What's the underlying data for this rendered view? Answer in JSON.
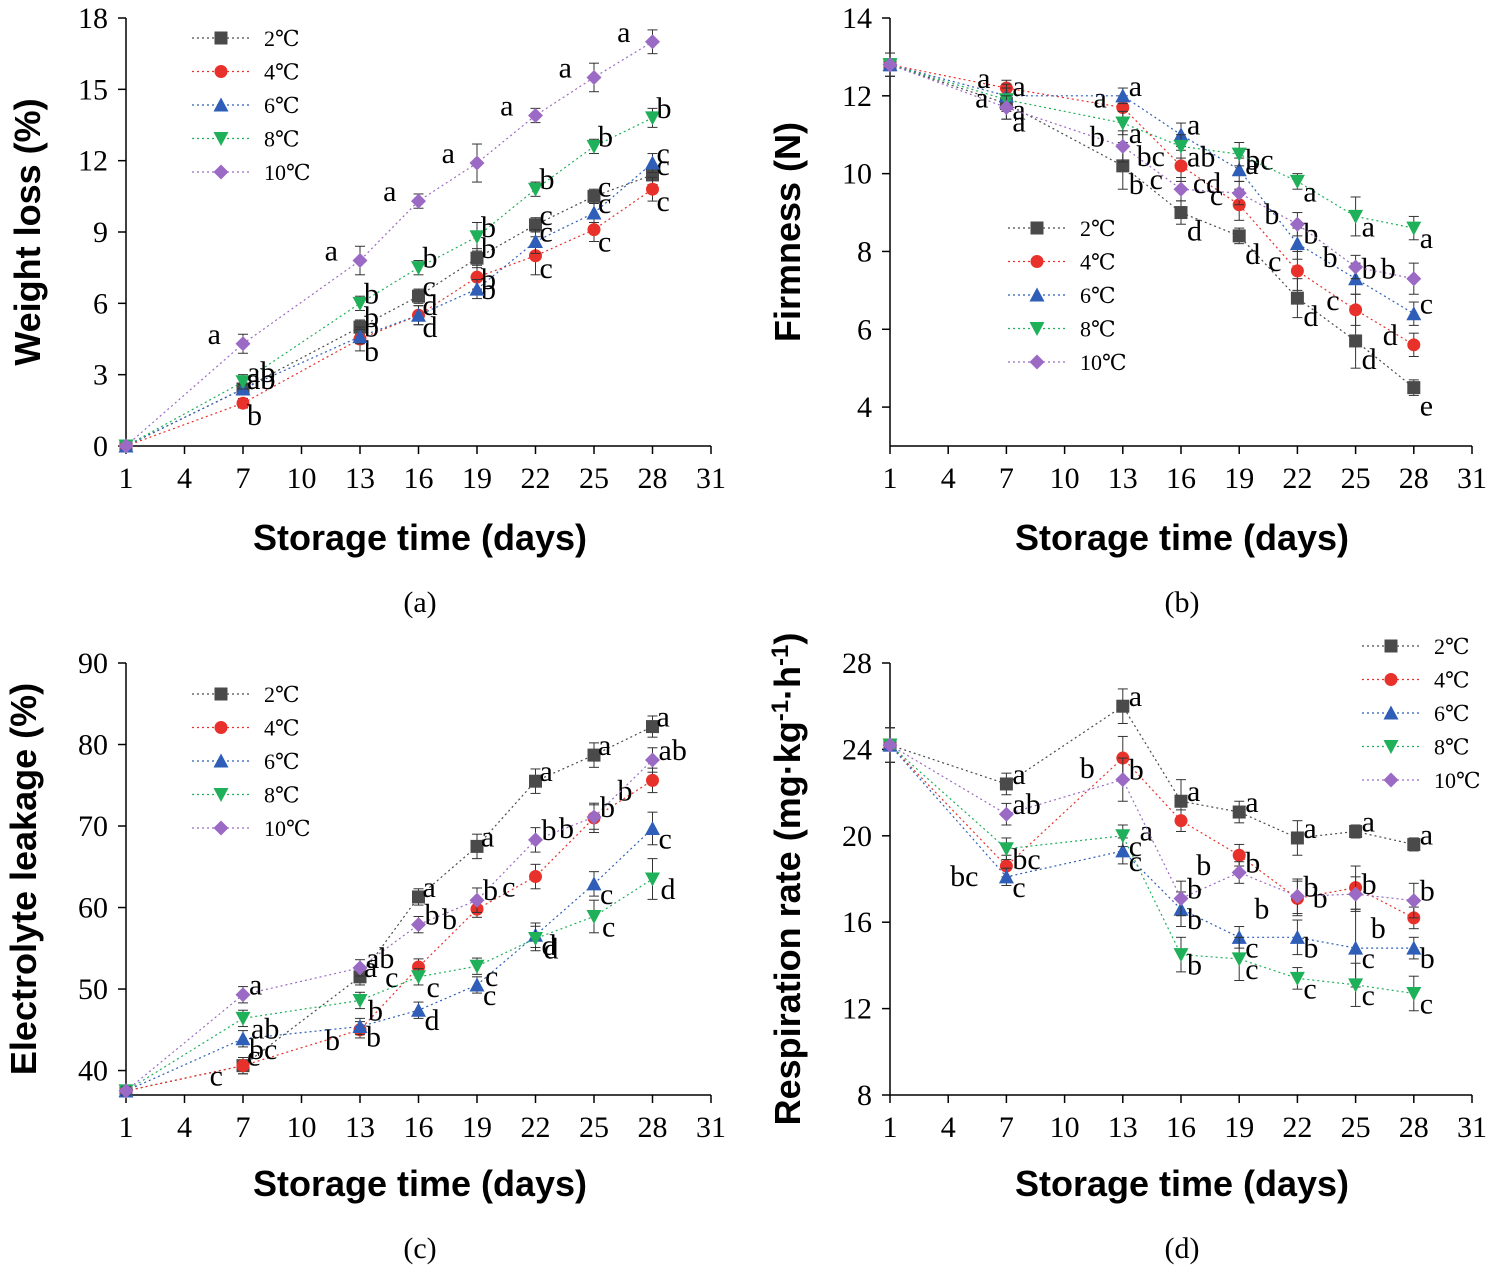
{
  "series_colors": [
    "#4a4a4a",
    "#e8312a",
    "#2e5eb8",
    "#1fb05a",
    "#9b6ac4"
  ],
  "series_markers": [
    "square",
    "circle",
    "triangle-up",
    "triangle-down",
    "diamond"
  ],
  "chart_data": [
    {
      "id": "a",
      "type": "line",
      "panel_label": "(a)",
      "xlabel": "Storage time (days)",
      "ylabel": "Weight loss (%)",
      "xlim": [
        1,
        31
      ],
      "xticks": [
        1,
        4,
        7,
        10,
        13,
        16,
        19,
        22,
        25,
        28,
        31
      ],
      "ylim": [
        0,
        18
      ],
      "yticks": [
        0,
        3,
        6,
        9,
        12,
        15,
        18
      ],
      "legend_position": "top-left",
      "x": [
        1,
        7,
        13,
        16,
        19,
        22,
        25,
        28
      ],
      "series": [
        {
          "name": "2℃",
          "values": [
            0,
            2.4,
            5.0,
            6.3,
            7.9,
            9.3,
            10.5,
            11.4
          ],
          "err": [
            0,
            0.2,
            0.3,
            0.3,
            0.4,
            0.3,
            0.3,
            0.4
          ],
          "letters": [
            "",
            "ab",
            "b",
            "c",
            "b",
            "c",
            "c",
            "c"
          ]
        },
        {
          "name": "4℃",
          "values": [
            0,
            1.8,
            4.5,
            5.5,
            7.1,
            8.0,
            9.1,
            10.8
          ],
          "err": [
            0,
            0.2,
            0.5,
            0.4,
            0.5,
            0.8,
            0.5,
            0.5
          ],
          "letters": [
            "",
            "b",
            "b",
            "d",
            "b",
            "c",
            "c",
            "c"
          ]
        },
        {
          "name": "6℃",
          "values": [
            0,
            2.4,
            4.6,
            5.5,
            6.6,
            8.6,
            9.8,
            11.9
          ],
          "err": [
            0,
            0.2,
            0.3,
            0.4,
            0.4,
            0.5,
            0.4,
            0.4
          ],
          "letters": [
            "",
            "ab",
            "b",
            "d",
            "b",
            "c",
            "c",
            "c"
          ]
        },
        {
          "name": "8℃",
          "values": [
            0,
            2.7,
            6.0,
            7.5,
            8.8,
            10.8,
            12.6,
            13.8
          ],
          "err": [
            0,
            0.3,
            0.3,
            0.3,
            0.6,
            0.3,
            0.3,
            0.4
          ],
          "letters": [
            "",
            "ab",
            "b",
            "b",
            "b",
            "b",
            "b",
            "b"
          ]
        },
        {
          "name": "10℃",
          "values": [
            0,
            4.3,
            7.8,
            10.3,
            11.9,
            13.9,
            15.5,
            17.0
          ],
          "err": [
            0,
            0.4,
            0.6,
            0.3,
            0.8,
            0.3,
            0.6,
            0.5
          ],
          "letters": [
            "",
            "a",
            "a",
            "a",
            "a",
            "a",
            "a",
            "a"
          ]
        }
      ]
    },
    {
      "id": "b",
      "type": "line",
      "panel_label": "(b)",
      "xlabel": "Storage time (days)",
      "ylabel": "Firmness (N)",
      "xlim": [
        1,
        31
      ],
      "xticks": [
        1,
        4,
        7,
        10,
        13,
        16,
        19,
        22,
        25,
        28,
        31
      ],
      "ylim": [
        3,
        14
      ],
      "yticks": [
        4,
        6,
        8,
        10,
        12,
        14
      ],
      "legend_position": "middle-left",
      "x": [
        1,
        7,
        13,
        16,
        19,
        22,
        25,
        28
      ],
      "series": [
        {
          "name": "2℃",
          "values": [
            12.8,
            11.8,
            10.2,
            9.0,
            8.4,
            6.8,
            5.7,
            4.5
          ],
          "err": [
            0.3,
            0.4,
            0.6,
            0.3,
            0.2,
            0.5,
            0.7,
            0.2
          ],
          "letters": [
            "",
            "a",
            "b",
            "d",
            "d",
            "d",
            "d",
            "e"
          ]
        },
        {
          "name": "4℃",
          "values": [
            12.8,
            12.2,
            11.7,
            10.2,
            9.2,
            7.5,
            6.5,
            5.6
          ],
          "err": [
            0.3,
            0.2,
            0.3,
            0.4,
            0.4,
            0.5,
            0.4,
            0.3
          ],
          "letters": [
            "",
            "a",
            "a",
            "bc",
            "c",
            "c",
            "c",
            "d"
          ]
        },
        {
          "name": "6℃",
          "values": [
            12.8,
            12.0,
            12.0,
            11.0,
            10.1,
            8.2,
            7.3,
            6.4
          ],
          "err": [
            0.3,
            0.3,
            0.2,
            0.3,
            0.3,
            0.4,
            0.4,
            0.3
          ],
          "letters": [
            "",
            "a",
            "a",
            "a",
            "bc",
            "b",
            "b",
            "c"
          ]
        },
        {
          "name": "8℃",
          "values": [
            12.8,
            11.9,
            11.3,
            10.7,
            10.5,
            9.8,
            8.9,
            8.6
          ],
          "err": [
            0.3,
            0.3,
            0.3,
            0.3,
            0.3,
            0.2,
            0.5,
            0.3
          ],
          "letters": [
            "",
            "a",
            "a",
            "ab",
            "a",
            "a",
            "a",
            "a"
          ]
        },
        {
          "name": "10℃",
          "values": [
            12.8,
            11.7,
            10.7,
            9.6,
            9.5,
            8.7,
            7.6,
            7.3
          ],
          "err": [
            0.3,
            0.3,
            0.4,
            0.3,
            0.3,
            0.3,
            0.3,
            0.4
          ],
          "letters": [
            "",
            "a",
            "b",
            "c",
            "cd",
            "b",
            "b",
            "b"
          ]
        }
      ]
    },
    {
      "id": "c",
      "type": "line",
      "panel_label": "(c)",
      "xlabel": "Storage time (days)",
      "ylabel": "Electrolyte leakage (%)",
      "xlim": [
        1,
        31
      ],
      "xticks": [
        1,
        4,
        7,
        10,
        13,
        16,
        19,
        22,
        25,
        28,
        31
      ],
      "ylim": [
        37,
        90
      ],
      "yticks": [
        40,
        50,
        60,
        70,
        80,
        90
      ],
      "legend_position": "top-left",
      "x": [
        1,
        7,
        13,
        16,
        19,
        22,
        25,
        28
      ],
      "series": [
        {
          "name": "2℃",
          "values": [
            37.5,
            40.6,
            51.5,
            61.3,
            67.5,
            75.5,
            78.7,
            82.2
          ],
          "err": [
            0.5,
            1.0,
            1.0,
            1.0,
            1.5,
            1.5,
            1.5,
            1.3
          ],
          "letters": [
            "",
            "c",
            "a",
            "a",
            "a",
            "a",
            "a",
            "a"
          ]
        },
        {
          "name": "4℃",
          "values": [
            37.5,
            40.6,
            45.0,
            52.7,
            59.8,
            63.8,
            71.0,
            75.6
          ],
          "err": [
            0.5,
            1.0,
            1.0,
            1.0,
            1.0,
            1.5,
            1.8,
            1.5
          ],
          "letters": [
            "",
            "c",
            "b",
            "c",
            "b",
            "c",
            "b",
            "b"
          ]
        },
        {
          "name": "6℃",
          "values": [
            37.5,
            43.9,
            45.4,
            47.4,
            50.5,
            56.6,
            62.9,
            69.7
          ],
          "err": [
            0.5,
            1.0,
            1.0,
            1.0,
            1.0,
            1.5,
            1.5,
            2.0
          ],
          "letters": [
            "",
            "bc",
            "b",
            "d",
            "c",
            "d",
            "c",
            "c"
          ]
        },
        {
          "name": "8℃",
          "values": [
            37.5,
            46.4,
            48.6,
            51.5,
            52.8,
            56.2,
            58.9,
            63.5
          ],
          "err": [
            0.5,
            1.0,
            1.0,
            1.0,
            1.0,
            1.5,
            2.0,
            2.5
          ],
          "letters": [
            "",
            "ab",
            "b",
            "c",
            "c",
            "d",
            "c",
            "d"
          ]
        },
        {
          "name": "10℃",
          "values": [
            37.5,
            49.3,
            52.6,
            57.9,
            60.9,
            68.3,
            71.1,
            78.1
          ],
          "err": [
            0.5,
            1.0,
            1.0,
            1.0,
            1.5,
            1.5,
            1.5,
            1.5
          ],
          "letters": [
            "",
            "a",
            "ab",
            "b",
            "b",
            "b",
            "b",
            "ab"
          ]
        }
      ]
    },
    {
      "id": "d",
      "type": "line",
      "panel_label": "(d)",
      "xlabel": "Storage time (days)",
      "ylabel": "Respiration rate (mg·kg",
      "ylabel_sup1": "-1",
      "ylabel_mid": "·h",
      "ylabel_sup2": "-1",
      "ylabel_end": ")",
      "xlim": [
        1,
        31
      ],
      "xticks": [
        1,
        4,
        7,
        10,
        13,
        16,
        19,
        22,
        25,
        28,
        31
      ],
      "ylim": [
        8,
        28
      ],
      "yticks": [
        8,
        12,
        16,
        20,
        24,
        28
      ],
      "legend_position": "top-right",
      "x": [
        1,
        7,
        13,
        16,
        19,
        22,
        25,
        28
      ],
      "series": [
        {
          "name": "2℃",
          "values": [
            24.2,
            22.4,
            26.0,
            21.6,
            21.1,
            19.9,
            20.2,
            19.6
          ],
          "err": [
            0.8,
            0.5,
            0.8,
            1.0,
            0.5,
            0.8,
            0.3,
            0.3
          ],
          "letters": [
            "",
            "a",
            "a",
            "a",
            "a",
            "a",
            "a",
            "a"
          ]
        },
        {
          "name": "4℃",
          "values": [
            24.2,
            18.6,
            23.6,
            20.7,
            19.1,
            17.1,
            17.6,
            16.2
          ],
          "err": [
            0.8,
            0.5,
            1.0,
            0.5,
            0.5,
            0.8,
            1.0,
            0.5
          ],
          "letters": [
            "",
            "bc",
            "b",
            "a",
            "b",
            "b",
            "b",
            "b"
          ]
        },
        {
          "name": "6℃",
          "values": [
            24.2,
            18.1,
            19.3,
            16.6,
            15.3,
            15.3,
            14.8,
            14.8
          ],
          "err": [
            0.8,
            0.4,
            0.6,
            0.8,
            0.5,
            0.8,
            1.8,
            0.5
          ],
          "letters": [
            "",
            "c",
            "c",
            "b",
            "c",
            "b",
            "c",
            "b"
          ]
        },
        {
          "name": "8℃",
          "values": [
            24.2,
            19.4,
            20.0,
            14.5,
            14.3,
            13.4,
            13.1,
            12.7
          ],
          "err": [
            0.8,
            0.5,
            0.5,
            0.8,
            1.0,
            0.5,
            1.0,
            0.8
          ],
          "letters": [
            "",
            "bc",
            "c",
            "b",
            "c",
            "c",
            "c",
            "c"
          ]
        },
        {
          "name": "10℃",
          "values": [
            24.2,
            21.0,
            22.6,
            17.1,
            18.3,
            17.2,
            17.3,
            17.0
          ],
          "err": [
            0.8,
            0.5,
            1.0,
            0.8,
            0.5,
            0.8,
            0.8,
            0.8
          ],
          "letters": [
            "",
            "ab",
            "b",
            "b",
            "b",
            "b",
            "b",
            "b"
          ]
        }
      ]
    }
  ]
}
